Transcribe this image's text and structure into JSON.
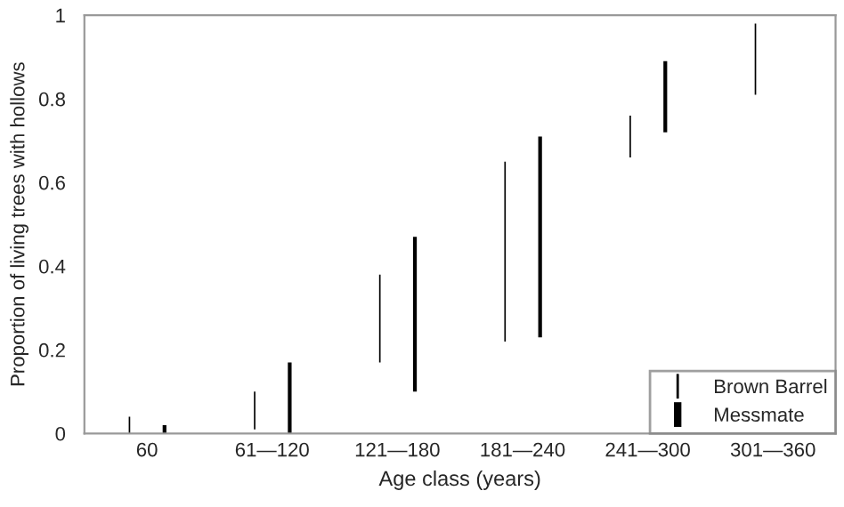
{
  "chart_data": {
    "type": "bar",
    "xlabel": "Age class (years)",
    "ylabel": "Proportion of living trees with hollows",
    "categories": [
      "60",
      "61—120",
      "121—180",
      "181—240",
      "241—300",
      "301—360"
    ],
    "series": [
      {
        "name": "Brown Barrel",
        "color": "#000000",
        "values": [
          0.04,
          0.09,
          0.21,
          0.43,
          0.1,
          0.17
        ],
        "base": [
          0,
          0.01,
          0.17,
          0.22,
          0.66,
          0.81
        ]
      },
      {
        "name": "Messmate",
        "color": "#000000",
        "values": [
          0.02,
          0.17,
          0.37,
          0.48,
          0.17,
          null
        ],
        "base": [
          0,
          0,
          0.1,
          0.23,
          0.72,
          null
        ]
      }
    ],
    "ylim": [
      0,
      1
    ],
    "yticks": [
      0,
      0.2,
      0.4,
      0.6,
      0.8,
      1
    ],
    "grid": false,
    "legend": "bottom right"
  }
}
